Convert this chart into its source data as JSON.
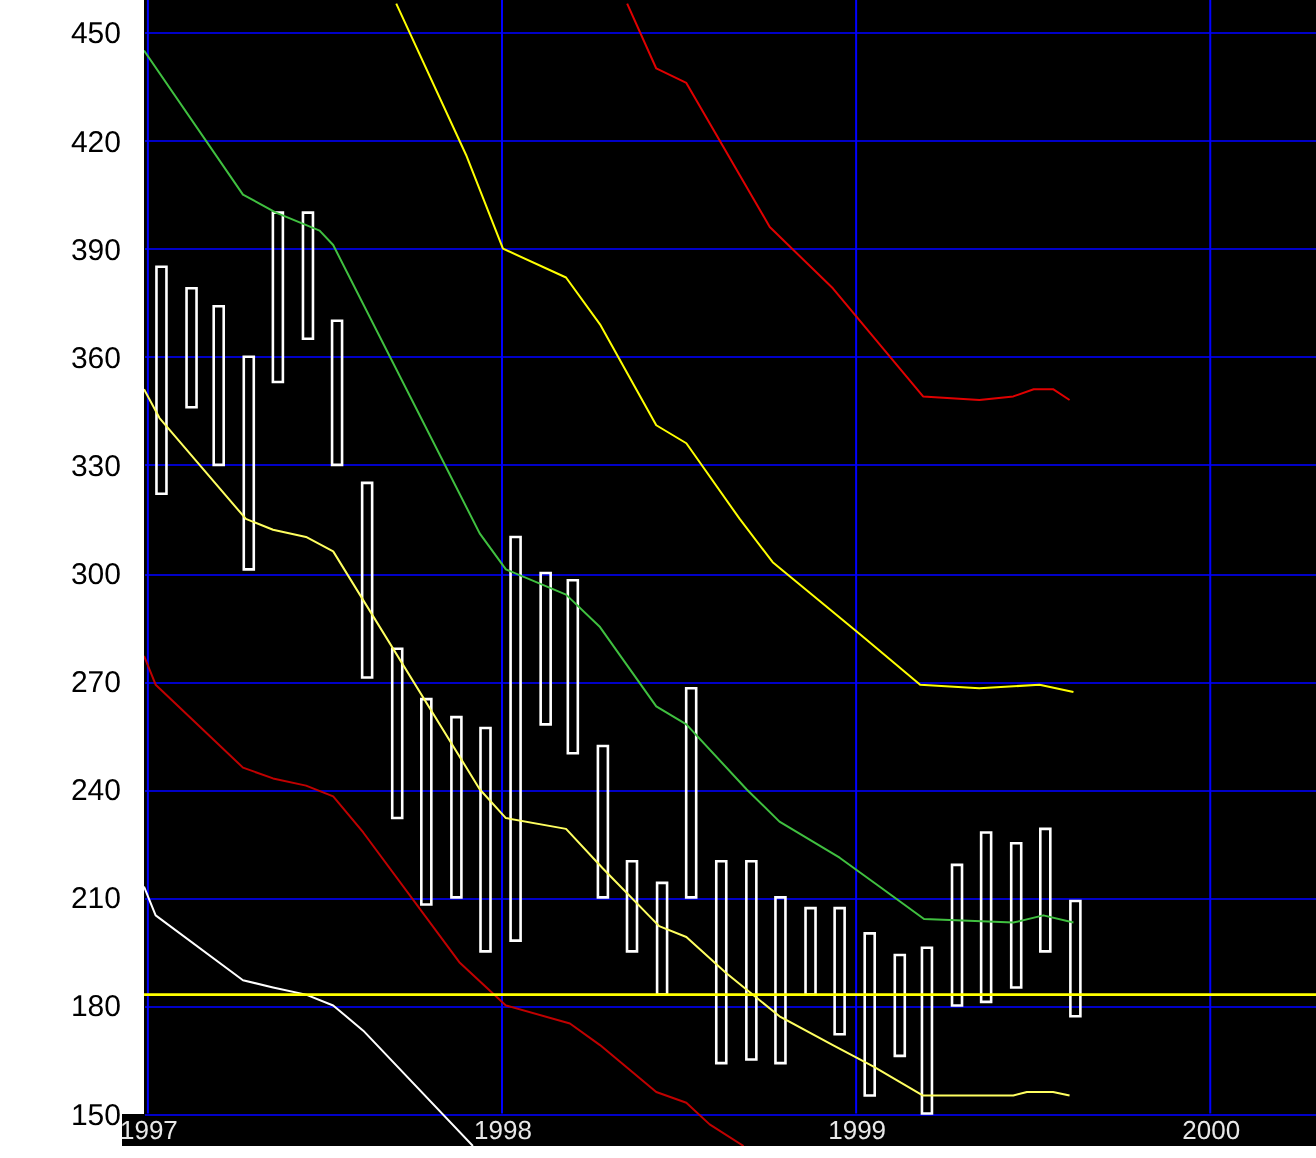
{
  "chart_data": {
    "type": "bar",
    "xlim": [
      "1996-12-28",
      "2000-04-19"
    ],
    "xticks": [
      "1997",
      "1998",
      "1999",
      "2000"
    ],
    "ylim": [
      141,
      459
    ],
    "yticks": [
      150,
      180,
      210,
      240,
      270,
      300,
      330,
      360,
      390,
      420,
      450
    ],
    "grid": true,
    "ref_lines": [
      {
        "axis": "y",
        "value": 183,
        "color": "#ffff00"
      }
    ],
    "series": [
      {
        "color": "#ffffff",
        "x": [
          "1997-01-15",
          "1997-02-15",
          "1997-03-15",
          "1997-04-15",
          "1997-05-15",
          "1997-06-15",
          "1997-07-15",
          "1997-08-15",
          "1997-09-15",
          "1997-10-15",
          "1997-11-15",
          "1997-12-15",
          "1998-01-15",
          "1998-02-15",
          "1998-03-15",
          "1998-04-15",
          "1998-05-15",
          "1998-06-15",
          "1998-07-15",
          "1998-08-15",
          "1998-09-15",
          "1998-10-15",
          "1998-11-15",
          "1998-12-15",
          "1999-01-15",
          "1999-02-15",
          "1999-03-15",
          "1999-04-15",
          "1999-05-15",
          "1999-06-15",
          "1999-07-15",
          "1999-08-15"
        ],
        "base": [
          322,
          346,
          330,
          301,
          353,
          365,
          330,
          271,
          232,
          208,
          210,
          195,
          198,
          258,
          250,
          210,
          195,
          183,
          210,
          164,
          165,
          164,
          183,
          172,
          155,
          166,
          150,
          180,
          181,
          185,
          195,
          177
        ],
        "values": [
          63,
          33,
          44,
          59,
          47,
          35,
          40,
          54,
          47,
          57,
          50,
          62,
          112,
          42,
          48,
          42,
          25,
          31,
          58,
          56,
          55,
          46,
          24,
          35,
          45,
          28,
          46,
          39,
          47,
          40,
          34,
          32
        ]
      },
      {
        "type": "line",
        "color": "#e00000",
        "x": [
          "1998-05-10",
          "1998-06-09",
          "1998-07-10",
          "1998-10-04",
          "1998-12-08",
          "1999-03-11",
          "1999-05-08",
          "1999-06-12",
          "1999-07-03",
          "1999-07-23",
          "1999-08-09"
        ],
        "values": [
          458,
          440,
          436,
          396,
          379,
          349,
          348,
          349,
          351,
          351,
          348
        ]
      },
      {
        "type": "line",
        "color": "#ffff00",
        "x": [
          "1997-09-14",
          "1997-11-25",
          "1998-01-02",
          "1998-03-08",
          "1998-04-12",
          "1998-06-09",
          "1998-07-10",
          "1998-09-03",
          "1998-10-07",
          "1999-01-05",
          "1999-03-08",
          "1999-05-08",
          "1999-07-09",
          "1999-08-13"
        ],
        "values": [
          458,
          416,
          390,
          382,
          369,
          341,
          336,
          315,
          303,
          283,
          269,
          268,
          269,
          267
        ]
      },
      {
        "type": "line",
        "color": "#40c040",
        "x": [
          "1996-12-28",
          "1997-04-09",
          "1997-05-13",
          "1997-06-27",
          "1997-07-11",
          "1997-12-09",
          "1998-01-05",
          "1998-03-08",
          "1998-04-12",
          "1998-06-09",
          "1998-07-10",
          "1998-09-10",
          "1998-10-14",
          "1998-12-15",
          "1999-01-25",
          "1999-03-12",
          "1999-06-12",
          "1999-07-13",
          "1999-08-13"
        ],
        "values": [
          445,
          405,
          400,
          395,
          391,
          311,
          301,
          294,
          285,
          263,
          258,
          240,
          231,
          221,
          213,
          204,
          203,
          205,
          203
        ]
      },
      {
        "type": "line",
        "color": "#ffff60",
        "x": [
          "1996-12-28",
          "1997-01-13",
          "1997-04-12",
          "1997-05-10",
          "1997-06-13",
          "1997-07-11",
          "1997-12-09",
          "1998-01-05",
          "1998-03-08",
          "1998-04-15",
          "1998-06-12",
          "1998-07-10",
          "1998-08-20",
          "1998-10-14",
          "1998-12-08",
          "1999-01-19",
          "1999-03-11",
          "1999-06-12",
          "1999-06-26",
          "1999-07-23",
          "1999-08-09"
        ],
        "values": [
          351,
          343,
          315,
          312,
          310,
          306,
          240,
          232,
          229,
          218,
          202,
          199,
          189,
          177,
          169,
          163,
          155,
          155,
          156,
          156,
          155
        ]
      },
      {
        "type": "line",
        "color": "#c00000",
        "x": [
          "1996-12-28",
          "1997-01-09",
          "1997-04-09",
          "1997-05-10",
          "1997-06-13",
          "1997-07-11",
          "1997-08-11",
          "1997-11-18",
          "1997-12-16",
          "1998-01-05",
          "1998-03-12",
          "1998-04-12",
          "1998-06-09",
          "1998-07-10",
          "1998-08-03",
          "1998-09-07"
        ],
        "values": [
          277,
          269,
          246,
          243,
          241,
          238,
          228,
          192,
          185,
          180,
          175,
          169,
          156,
          153,
          147,
          141
        ]
      },
      {
        "type": "line",
        "color": "#ffffff",
        "x": [
          "1996-12-28",
          "1997-01-09",
          "1997-04-09",
          "1997-05-10",
          "1997-06-13",
          "1997-07-11",
          "1997-08-11",
          "1997-12-02"
        ],
        "values": [
          213,
          205,
          187,
          185,
          183,
          180,
          173,
          141
        ]
      }
    ]
  }
}
